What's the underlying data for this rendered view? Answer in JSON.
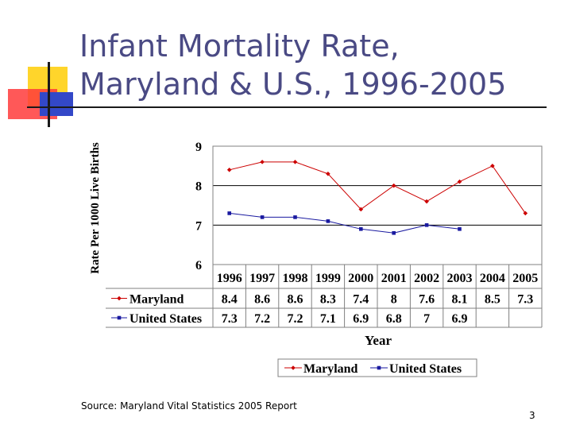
{
  "slide": {
    "title_line1": "Infant Mortality Rate,",
    "title_line2": "Maryland & U.S., 1996-2005",
    "source": "Source:  Maryland Vital Statistics 2005 Report",
    "page_number": "3"
  },
  "colors": {
    "title": "#4a4a84",
    "maryland": "#cc0000",
    "united_states": "#1a1aa0",
    "accent_yellow": "#ffd52b",
    "accent_red": "#ff3b3b",
    "accent_blue": "#3348c8"
  },
  "chart_data": {
    "type": "line",
    "xlabel": "Year",
    "ylabel": "Rate Per 1000 Live Births",
    "ylim": [
      6,
      9
    ],
    "yticks": [
      "6",
      "7",
      "8",
      "9"
    ],
    "categories": [
      "1996",
      "1997",
      "1998",
      "1999",
      "2000",
      "2001",
      "2002",
      "2003",
      "2004",
      "2005"
    ],
    "grid": true,
    "legend": "bottom",
    "data_table": true,
    "series": [
      {
        "name": "Maryland",
        "values": [
          8.4,
          8.6,
          8.6,
          8.3,
          7.4,
          8,
          7.6,
          8.1,
          8.5,
          7.3
        ],
        "labels": [
          "8.4",
          "8.6",
          "8.6",
          "8.3",
          "7.4",
          "8",
          "7.6",
          "8.1",
          "8.5",
          "7.3"
        ],
        "color": "#cc0000",
        "marker": "diamond"
      },
      {
        "name": "United States",
        "values": [
          7.3,
          7.2,
          7.2,
          7.1,
          6.9,
          6.8,
          7,
          6.9,
          null,
          null
        ],
        "labels": [
          "7.3",
          "7.2",
          "7.2",
          "7.1",
          "6.9",
          "6.8",
          "7",
          "6.9",
          "",
          ""
        ],
        "color": "#1a1aa0",
        "marker": "square"
      }
    ]
  }
}
